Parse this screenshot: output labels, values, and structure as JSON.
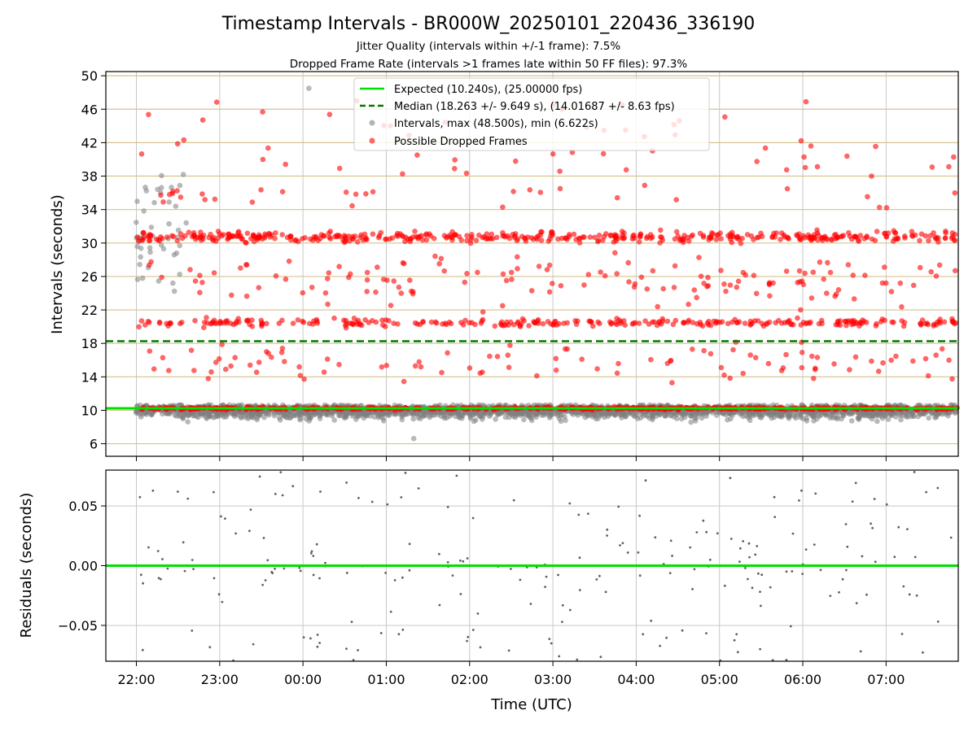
{
  "title": "Timestamp Intervals - BR000W_20250101_220436_336190",
  "subtitle_1": "Jitter Quality (intervals within +/-1 frame): 7.5%",
  "subtitle_2": "Dropped Frame Rate (intervals >1 frames late within 50 FF files): 97.3%",
  "colors": {
    "expected": "#00e000",
    "median": "#007a00",
    "interval_points": "#808080",
    "dropped_points": "#ff0000",
    "hgrid_top": "#d6c38e",
    "grid": "#c8c8c8",
    "residual_points": "#606060"
  },
  "chart_data": [
    {
      "type": "scatter",
      "ylabel": "Intervals (seconds)",
      "ylim": [
        4.5,
        50.5
      ],
      "xlim": [
        "21:38",
        "07:52"
      ],
      "x_ticks": [
        "22:00",
        "23:00",
        "00:00",
        "01:00",
        "02:00",
        "03:00",
        "04:00",
        "05:00",
        "06:00",
        "07:00"
      ],
      "y_ticks": [
        6,
        10,
        14,
        18,
        22,
        26,
        30,
        34,
        38,
        42,
        46,
        50
      ],
      "grid": true,
      "legend_position": "top-center",
      "expected": 10.24,
      "median": 18.263,
      "series": [
        {
          "name": "Expected (10.240s), (25.00000 fps)",
          "kind": "hline"
        },
        {
          "name": "Median (18.263 +/- 9.649 s), (14.01687 +/- 8.63 fps)",
          "kind": "dashed-hline"
        },
        {
          "name": "Intervals, max (48.500s), min (6.622s)",
          "kind": "gray-points",
          "max": 48.5,
          "min": 6.622,
          "count": 2600
        },
        {
          "name": "Possible Dropped Frames",
          "kind": "red-points",
          "count": 1650
        }
      ]
    },
    {
      "type": "scatter",
      "xlabel": "Time (UTC)",
      "ylabel": "Residuals (seconds)",
      "ylim": [
        -0.08,
        0.08
      ],
      "y_ticks": [
        "0.05",
        "0.00",
        "−0.05"
      ],
      "x_ticks": [
        "22:00",
        "23:00",
        "00:00",
        "01:00",
        "02:00",
        "03:00",
        "04:00",
        "05:00",
        "06:00",
        "07:00"
      ],
      "grid": true,
      "zero_line": 0.0,
      "point_count": 230
    }
  ]
}
